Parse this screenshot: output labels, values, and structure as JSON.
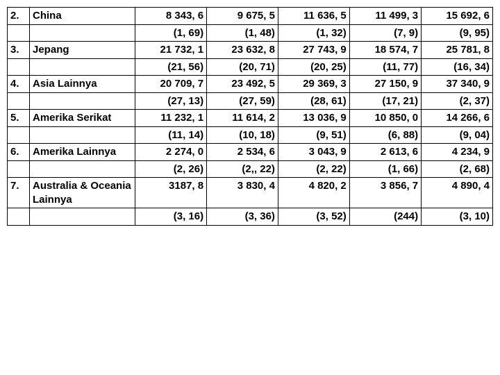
{
  "rows": [
    {
      "idx": "2.",
      "name": "China",
      "vals": [
        "8 343, 6",
        "9 675, 5",
        "11 636, 5",
        "11 499, 3",
        "15 692, 6"
      ]
    },
    {
      "idx": "",
      "name": "",
      "vals": [
        "(1, 69)",
        "(1, 48)",
        "(1, 32)",
        "(7, 9)",
        "(9, 95)"
      ]
    },
    {
      "idx": "3.",
      "name": "Jepang",
      "vals": [
        "21 732, 1",
        "23 632, 8",
        "27 743, 9",
        "18 574, 7",
        "25 781, 8"
      ]
    },
    {
      "idx": "",
      "name": "",
      "vals": [
        "(21, 56)",
        "(20, 71)",
        "(20, 25)",
        "(11, 77)",
        "(16, 34)"
      ]
    },
    {
      "idx": "4.",
      "name": "Asia Lainnya",
      "vals": [
        "20 709, 7",
        "23 492, 5",
        "29 369, 3",
        "27 150, 9",
        "37 340, 9"
      ]
    },
    {
      "idx": "",
      "name": "",
      "vals": [
        "(27, 13)",
        "(27, 59)",
        "(28, 61)",
        "(17, 21)",
        "(2, 37)"
      ]
    },
    {
      "idx": "5.",
      "name": "Amerika Serikat",
      "vals": [
        "11 232, 1",
        "11 614, 2",
        "13 036, 9",
        "10 850, 0",
        "14 266, 6"
      ]
    },
    {
      "idx": "",
      "name": "",
      "vals": [
        "(11, 14)",
        "(10, 18)",
        "(9, 51)",
        "(6, 88)",
        "(9, 04)"
      ]
    },
    {
      "idx": "6.",
      "name": "Amerika Lainnya",
      "vals": [
        "2 274, 0",
        "2 534, 6",
        "3 043, 9",
        "2 613, 6",
        "4 234, 9"
      ]
    },
    {
      "idx": "",
      "name": "",
      "vals": [
        "(2, 26)",
        "(2,, 22)",
        "(2, 22)",
        "(1, 66)",
        "(2, 68)"
      ]
    },
    {
      "idx": "7.",
      "name": "Australia & Oceania Lainnya",
      "vals": [
        "3187, 8",
        "3 830, 4",
        "4 820, 2",
        "3 856, 7",
        "4 890, 4"
      ]
    },
    {
      "idx": "",
      "name": "",
      "vals": [
        "(3, 16)",
        "(3, 36)",
        "(3, 52)",
        "(244)",
        "(3, 10)"
      ]
    }
  ]
}
